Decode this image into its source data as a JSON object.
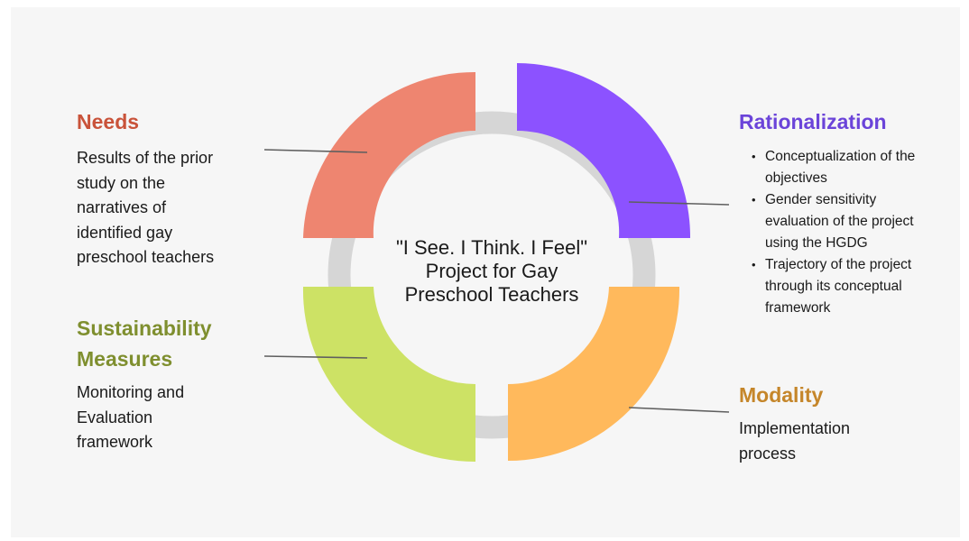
{
  "center": {
    "title": "\"I See. I Think. I Feel\" Project for Gay Preschool Teachers"
  },
  "needs": {
    "heading": "Needs",
    "body": "Results of the prior study on the narratives of identified gay preschool teachers",
    "color": "#e8765a"
  },
  "rationalization": {
    "heading": "Rationalization",
    "bullets": [
      "Conceptualization of the objectives",
      "Gender sensitivity evaluation of the project using the HGDG",
      "Trajectory of the project through its conceptual framework"
    ],
    "color": "#6f4ad6"
  },
  "sustainability": {
    "heading": "Sustainability Measures",
    "body": "Monitoring and Evaluation framework",
    "color": "#8a9a3a"
  },
  "modality": {
    "heading": "Modality",
    "body": "Implementation process",
    "color": "#c98a2a"
  },
  "segments": {
    "needs_color": "#ee8570",
    "rationalization_color": "#8c52ff",
    "sustainability_color": "#cde265",
    "modality_color": "#ffb95c",
    "ring_color": "#d6d6d6",
    "connector_color": "#5f5f5f"
  }
}
